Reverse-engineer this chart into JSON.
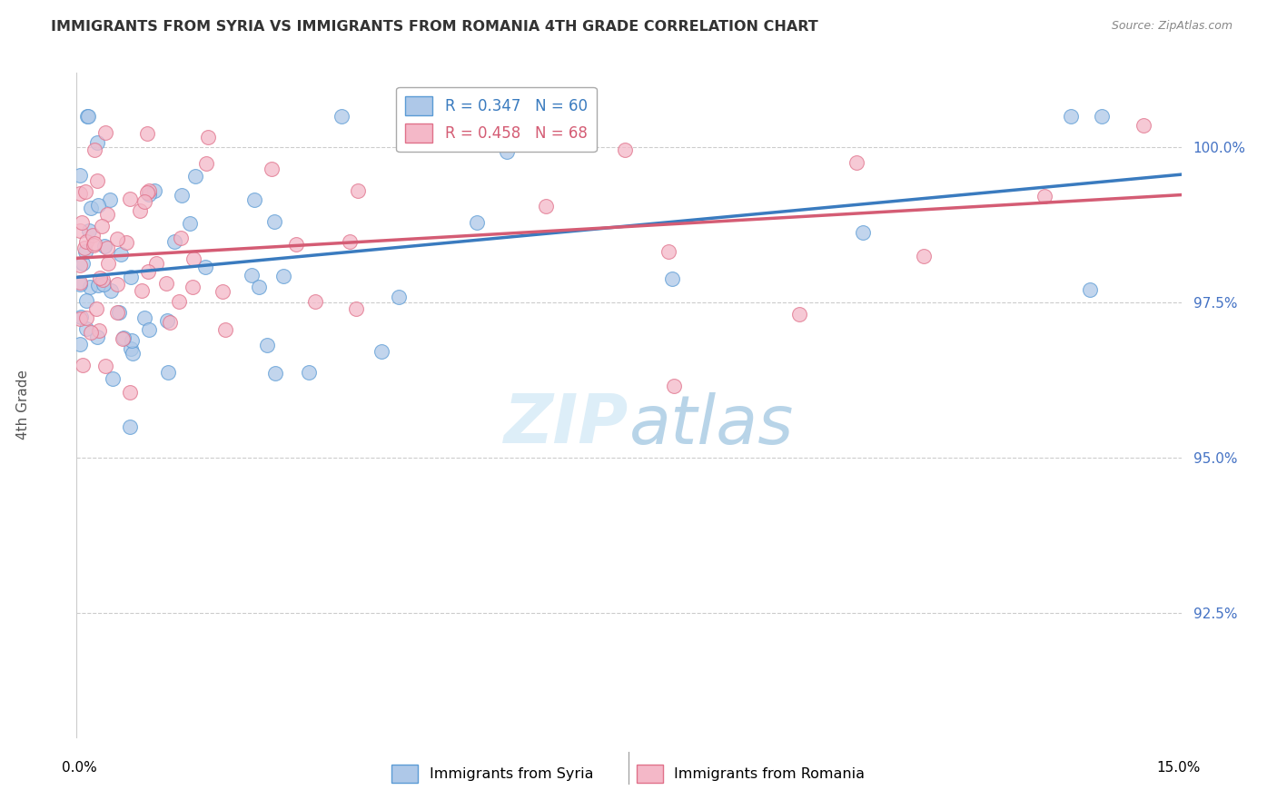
{
  "title": "IMMIGRANTS FROM SYRIA VS IMMIGRANTS FROM ROMANIA 4TH GRADE CORRELATION CHART",
  "source": "Source: ZipAtlas.com",
  "ylabel": "4th Grade",
  "yticks": [
    100.0,
    97.5,
    95.0,
    92.5
  ],
  "ytick_labels": [
    "100.0%",
    "97.5%",
    "95.0%",
    "92.5%"
  ],
  "xlim": [
    0.0,
    15.0
  ],
  "ylim": [
    90.5,
    101.2
  ],
  "legend_R_syria": "0.347",
  "legend_N_syria": "60",
  "legend_R_romania": "0.458",
  "legend_N_romania": "68",
  "label_syria": "Immigrants from Syria",
  "label_romania": "Immigrants from Romania",
  "color_syria_fill": "#aec8e8",
  "color_syria_edge": "#5b9bd5",
  "color_syria_line": "#3a7bbf",
  "color_romania_fill": "#f4b8c8",
  "color_romania_edge": "#e0718a",
  "color_romania_line": "#d45c74",
  "watermark_color": "#ddeef8",
  "grid_color": "#cccccc",
  "title_color": "#333333",
  "axis_label_color": "#555555",
  "tick_label_color": "#4472c4",
  "source_color": "#888888"
}
